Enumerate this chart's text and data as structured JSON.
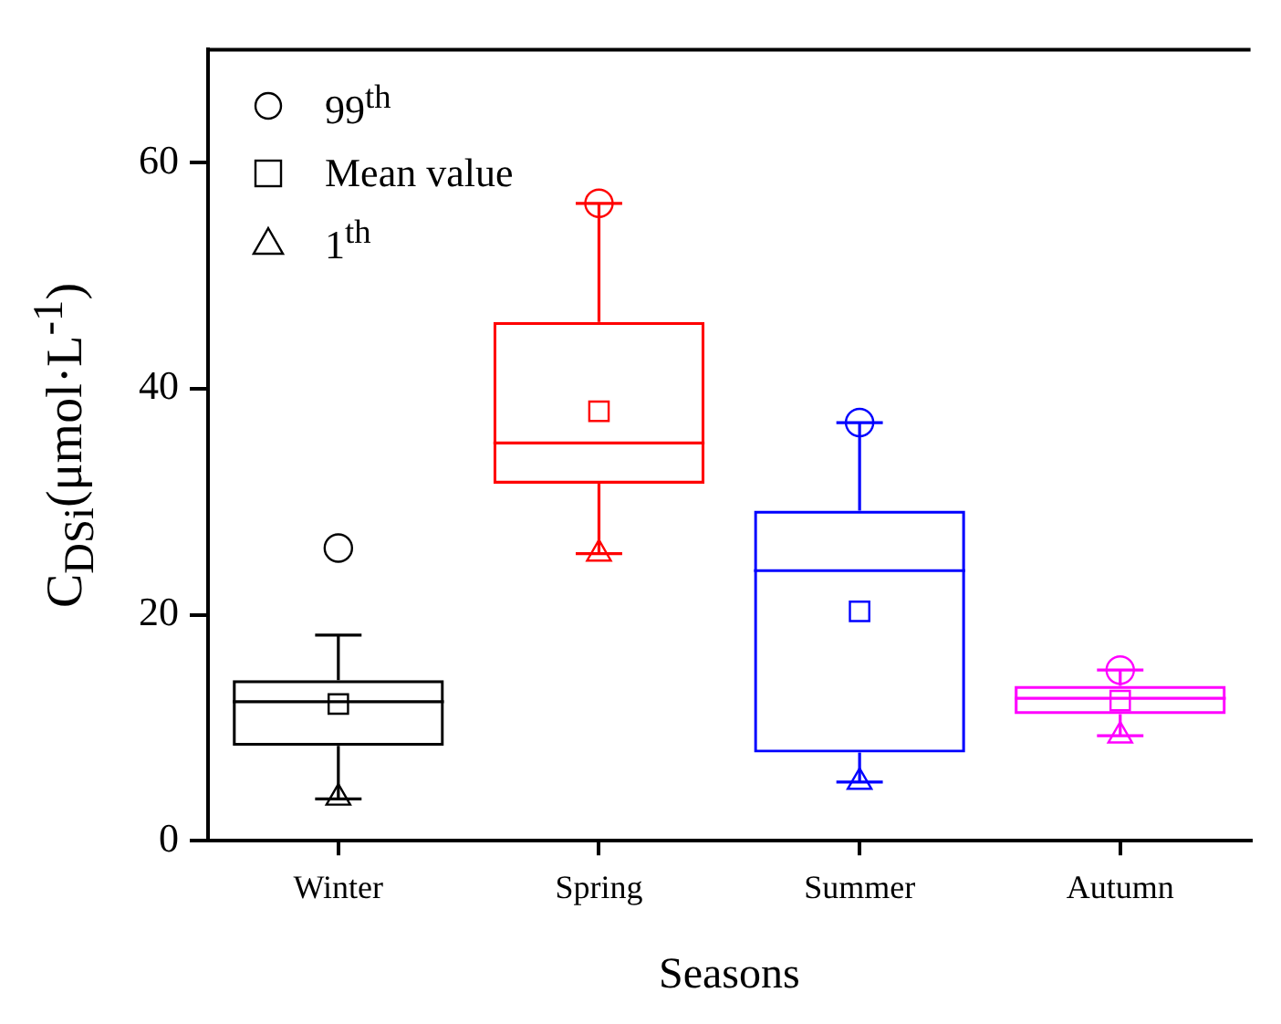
{
  "chart_data": {
    "type": "box",
    "xlabel": "Seasons",
    "ylabel": "C$_{DSi}$(μmol·L$^{-1}$)",
    "categories": [
      "Winter",
      "Spring",
      "Summer",
      "Autumn"
    ],
    "ylim": [
      0,
      70
    ],
    "yticks": [
      0,
      20,
      40,
      60
    ],
    "grid": false,
    "legend": "top left",
    "series": [
      {
        "colors": [
          "#000000",
          "#ff0000",
          "#0000ff",
          "#ff00ff"
        ],
        "boxes": [
          {
            "low": 3.7,
            "q1": 8.4,
            "median": 12.3,
            "q3": 14.2,
            "high": 18.2
          },
          {
            "low": 25.4,
            "q1": 31.6,
            "median": 35.2,
            "q3": 45.9,
            "high": 56.4
          },
          {
            "low": 5.2,
            "q1": 7.8,
            "median": 23.9,
            "q3": 29.2,
            "high": 37.0
          },
          {
            "low": 9.3,
            "q1": 11.2,
            "median": 12.6,
            "q3": 13.7,
            "high": 15.1
          }
        ]
      },
      {
        "type": "scatter",
        "name": "99$^{th}$",
        "marker": "circle",
        "x": [
          "Winter",
          "Spring",
          "Summer",
          "Autumn"
        ],
        "colors": [
          "#000000",
          "#ff0000",
          "#0000ff",
          "#ff00ff"
        ],
        "values": [
          25.9,
          56.4,
          37.0,
          15.1
        ]
      },
      {
        "type": "scatter",
        "name": "Mean value",
        "marker": "square",
        "x": [
          "Winter",
          "Spring",
          "Summer",
          "Autumn"
        ],
        "colors": [
          "#000000",
          "#ff0000",
          "#0000ff",
          "#ff00ff"
        ],
        "values": [
          12.1,
          38.0,
          20.3,
          12.4
        ]
      },
      {
        "type": "scatter",
        "name": "1$^{th}$",
        "marker": "triangle",
        "x": [
          "Winter",
          "Spring",
          "Summer",
          "Autumn"
        ],
        "colors": [
          "#000000",
          "#ff0000",
          "#0000ff",
          "#ff00ff"
        ],
        "values": [
          3.8,
          25.4,
          5.2,
          9.3
        ]
      }
    ]
  }
}
